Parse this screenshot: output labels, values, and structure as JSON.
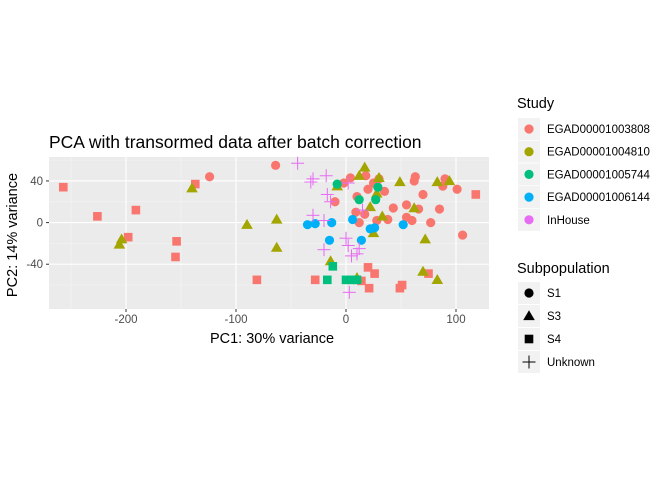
{
  "chart_data": {
    "type": "scatter",
    "title": "PCA with transormed data after batch correction",
    "xlabel": "PC1: 30% variance",
    "ylabel": "PC2: 14% variance",
    "xlim": [
      -270,
      130
    ],
    "ylim": [
      -83,
      63
    ],
    "xticks": [
      -200,
      -100,
      0,
      100
    ],
    "xtick_labels": [
      "-200",
      "-100",
      "0",
      "100"
    ],
    "yticks": [
      -40,
      0,
      40
    ],
    "ytick_labels": [
      "-40",
      "0",
      "40"
    ],
    "grid": true,
    "legend_position": "right",
    "legend_study": {
      "title": "Study",
      "entries": [
        {
          "key": "EGAD00001003808",
          "label": "EGAD00001003808",
          "color": "#F8766D"
        },
        {
          "key": "EGAD00001004810",
          "label": "EGAD00001004810",
          "color": "#A3A500"
        },
        {
          "key": "EGAD00001005744",
          "label": "EGAD00001005744",
          "color": "#00BF7D"
        },
        {
          "key": "EGAD00001006144",
          "label": "EGAD00001006144",
          "color": "#00B0F6"
        },
        {
          "key": "InHouse",
          "label": "InHouse",
          "color": "#E76BF3"
        }
      ]
    },
    "legend_subpopulation": {
      "title": "Subpopulation",
      "entries": [
        {
          "key": "S1",
          "label": "S1",
          "shape": "circle"
        },
        {
          "key": "S3",
          "label": "S3",
          "shape": "triangle"
        },
        {
          "key": "S4",
          "label": "S4",
          "shape": "square"
        },
        {
          "key": "Unknown",
          "label": "Unknown",
          "shape": "plus"
        }
      ]
    },
    "points": [
      {
        "x": -124,
        "y": 44,
        "study": "EGAD00001003808",
        "sub": "S1"
      },
      {
        "x": -64,
        "y": 55,
        "study": "EGAD00001003808",
        "sub": "S1"
      },
      {
        "x": 4,
        "y": 43,
        "study": "EGAD00001003808",
        "sub": "S1"
      },
      {
        "x": 18,
        "y": 45,
        "study": "EGAD00001003808",
        "sub": "S1"
      },
      {
        "x": 25,
        "y": 38,
        "study": "EGAD00001003808",
        "sub": "S1"
      },
      {
        "x": 30,
        "y": 42,
        "study": "EGAD00001003808",
        "sub": "S1"
      },
      {
        "x": 35,
        "y": 30,
        "study": "EGAD00001003808",
        "sub": "S1"
      },
      {
        "x": 20,
        "y": 32,
        "study": "EGAD00001003808",
        "sub": "S1"
      },
      {
        "x": 10,
        "y": 25,
        "study": "EGAD00001003808",
        "sub": "S1"
      },
      {
        "x": 63,
        "y": 44,
        "study": "EGAD00001003808",
        "sub": "S1"
      },
      {
        "x": 62,
        "y": 40,
        "study": "EGAD00001003808",
        "sub": "S1"
      },
      {
        "x": 70,
        "y": 27,
        "study": "EGAD00001003808",
        "sub": "S1"
      },
      {
        "x": 90,
        "y": 42,
        "study": "EGAD00001003808",
        "sub": "S1"
      },
      {
        "x": 88,
        "y": 35,
        "study": "EGAD00001003808",
        "sub": "S1"
      },
      {
        "x": 101,
        "y": 32,
        "study": "EGAD00001003808",
        "sub": "S1"
      },
      {
        "x": 55,
        "y": 17,
        "study": "EGAD00001003808",
        "sub": "S1"
      },
      {
        "x": 43,
        "y": 14,
        "study": "EGAD00001003808",
        "sub": "S1"
      },
      {
        "x": 38,
        "y": 3,
        "study": "EGAD00001003808",
        "sub": "S1"
      },
      {
        "x": 28,
        "y": 2,
        "study": "EGAD00001003808",
        "sub": "S1"
      },
      {
        "x": 55,
        "y": 5,
        "study": "EGAD00001003808",
        "sub": "S1"
      },
      {
        "x": 60,
        "y": 2,
        "study": "EGAD00001003808",
        "sub": "S1"
      },
      {
        "x": 66,
        "y": 13,
        "study": "EGAD00001003808",
        "sub": "S1"
      },
      {
        "x": 77,
        "y": 0,
        "study": "EGAD00001003808",
        "sub": "S1"
      },
      {
        "x": 85,
        "y": 13,
        "study": "EGAD00001003808",
        "sub": "S1"
      },
      {
        "x": 106,
        "y": -12,
        "study": "EGAD00001003808",
        "sub": "S1"
      },
      {
        "x": 9,
        "y": 10,
        "study": "EGAD00001003808",
        "sub": "S1"
      },
      {
        "x": 17,
        "y": 8,
        "study": "EGAD00001003808",
        "sub": "S1"
      },
      {
        "x": -10,
        "y": 20,
        "study": "EGAD00001003808",
        "sub": "S1"
      },
      {
        "x": -2,
        "y": 38,
        "study": "EGAD00001003808",
        "sub": "S1"
      },
      {
        "x": 12,
        "y": 0,
        "study": "EGAD00001003808",
        "sub": "S1"
      },
      {
        "x": -257,
        "y": 34,
        "study": "EGAD00001003808",
        "sub": "S4"
      },
      {
        "x": -226,
        "y": 6,
        "study": "EGAD00001003808",
        "sub": "S4"
      },
      {
        "x": -191,
        "y": 12,
        "study": "EGAD00001003808",
        "sub": "S4"
      },
      {
        "x": -198,
        "y": -14,
        "study": "EGAD00001003808",
        "sub": "S4"
      },
      {
        "x": -154,
        "y": -18,
        "study": "EGAD00001003808",
        "sub": "S4"
      },
      {
        "x": -155,
        "y": -33,
        "study": "EGAD00001003808",
        "sub": "S4"
      },
      {
        "x": -137,
        "y": 37,
        "study": "EGAD00001003808",
        "sub": "S4"
      },
      {
        "x": -81,
        "y": -55,
        "study": "EGAD00001003808",
        "sub": "S4"
      },
      {
        "x": -28,
        "y": -55,
        "study": "EGAD00001003808",
        "sub": "S4"
      },
      {
        "x": 20,
        "y": -43,
        "study": "EGAD00001003808",
        "sub": "S4"
      },
      {
        "x": 26,
        "y": -49,
        "study": "EGAD00001003808",
        "sub": "S4"
      },
      {
        "x": 14,
        "y": -56,
        "study": "EGAD00001003808",
        "sub": "S4"
      },
      {
        "x": 21,
        "y": -63,
        "study": "EGAD00001003808",
        "sub": "S4"
      },
      {
        "x": 49,
        "y": -63,
        "study": "EGAD00001003808",
        "sub": "S4"
      },
      {
        "x": 51,
        "y": -60,
        "study": "EGAD00001003808",
        "sub": "S4"
      },
      {
        "x": 75,
        "y": -49,
        "study": "EGAD00001003808",
        "sub": "S4"
      },
      {
        "x": 118,
        "y": 27,
        "study": "EGAD00001003808",
        "sub": "S4"
      },
      {
        "x": -204,
        "y": -16,
        "study": "EGAD00001004810",
        "sub": "S3"
      },
      {
        "x": -206,
        "y": -21,
        "study": "EGAD00001004810",
        "sub": "S3"
      },
      {
        "x": -140,
        "y": 33,
        "study": "EGAD00001004810",
        "sub": "S3"
      },
      {
        "x": -90,
        "y": -2,
        "study": "EGAD00001004810",
        "sub": "S3"
      },
      {
        "x": -63,
        "y": 3,
        "study": "EGAD00001004810",
        "sub": "S3"
      },
      {
        "x": -63,
        "y": -24,
        "study": "EGAD00001004810",
        "sub": "S3"
      },
      {
        "x": 12,
        "y": 45,
        "study": "EGAD00001004810",
        "sub": "S3"
      },
      {
        "x": 17,
        "y": 53,
        "study": "EGAD00001004810",
        "sub": "S3"
      },
      {
        "x": 28,
        "y": 28,
        "study": "EGAD00001004810",
        "sub": "S3"
      },
      {
        "x": 30,
        "y": 43,
        "study": "EGAD00001004810",
        "sub": "S3"
      },
      {
        "x": 22,
        "y": 15,
        "study": "EGAD00001004810",
        "sub": "S3"
      },
      {
        "x": 49,
        "y": 39,
        "study": "EGAD00001004810",
        "sub": "S3"
      },
      {
        "x": 62,
        "y": 14,
        "study": "EGAD00001004810",
        "sub": "S3"
      },
      {
        "x": 83,
        "y": 39,
        "study": "EGAD00001004810",
        "sub": "S3"
      },
      {
        "x": 94,
        "y": 40,
        "study": "EGAD00001004810",
        "sub": "S3"
      },
      {
        "x": 72,
        "y": -16,
        "study": "EGAD00001004810",
        "sub": "S3"
      },
      {
        "x": 70,
        "y": -47,
        "study": "EGAD00001004810",
        "sub": "S3"
      },
      {
        "x": 83,
        "y": -55,
        "study": "EGAD00001004810",
        "sub": "S3"
      },
      {
        "x": 10,
        "y": -53,
        "study": "EGAD00001004810",
        "sub": "S3"
      },
      {
        "x": -14,
        "y": -37,
        "study": "EGAD00001004810",
        "sub": "S3"
      },
      {
        "x": -8,
        "y": 35,
        "study": "EGAD00001004810",
        "sub": "S3"
      },
      {
        "x": 33,
        "y": 6,
        "study": "EGAD00001004810",
        "sub": "S3"
      },
      {
        "x": 25,
        "y": -10,
        "study": "EGAD00001004810",
        "sub": "S3"
      },
      {
        "x": -8,
        "y": 37,
        "study": "EGAD00001005744",
        "sub": "S1"
      },
      {
        "x": 12,
        "y": 22,
        "study": "EGAD00001005744",
        "sub": "S1"
      },
      {
        "x": 27,
        "y": 22,
        "study": "EGAD00001005744",
        "sub": "S1"
      },
      {
        "x": 29,
        "y": 34,
        "study": "EGAD00001005744",
        "sub": "S1"
      },
      {
        "x": -12,
        "y": -42,
        "study": "EGAD00001005744",
        "sub": "S4"
      },
      {
        "x": -17,
        "y": -55,
        "study": "EGAD00001005744",
        "sub": "S4"
      },
      {
        "x": 0,
        "y": -55,
        "study": "EGAD00001005744",
        "sub": "S4"
      },
      {
        "x": 5,
        "y": -55,
        "study": "EGAD00001005744",
        "sub": "S4"
      },
      {
        "x": 10,
        "y": -55,
        "study": "EGAD00001005744",
        "sub": "S4"
      },
      {
        "x": -35,
        "y": -2,
        "study": "EGAD00001006144",
        "sub": "S1"
      },
      {
        "x": -28,
        "y": -1,
        "study": "EGAD00001006144",
        "sub": "S1"
      },
      {
        "x": -13,
        "y": 0,
        "study": "EGAD00001006144",
        "sub": "S1"
      },
      {
        "x": -15,
        "y": -17,
        "study": "EGAD00001006144",
        "sub": "S1"
      },
      {
        "x": 6,
        "y": 3,
        "study": "EGAD00001006144",
        "sub": "S1"
      },
      {
        "x": 14,
        "y": -17,
        "study": "EGAD00001006144",
        "sub": "S1"
      },
      {
        "x": 22,
        "y": -6,
        "study": "EGAD00001006144",
        "sub": "S1"
      },
      {
        "x": 26,
        "y": -5,
        "study": "EGAD00001006144",
        "sub": "S1"
      },
      {
        "x": 52,
        "y": -2,
        "study": "EGAD00001006144",
        "sub": "S1"
      },
      {
        "x": -44,
        "y": 57,
        "study": "InHouse",
        "sub": "Unknown"
      },
      {
        "x": -32,
        "y": 39,
        "study": "InHouse",
        "sub": "Unknown"
      },
      {
        "x": -30,
        "y": 42,
        "study": "InHouse",
        "sub": "Unknown"
      },
      {
        "x": -18,
        "y": 45,
        "study": "InHouse",
        "sub": "Unknown"
      },
      {
        "x": -17,
        "y": 27,
        "study": "InHouse",
        "sub": "Unknown"
      },
      {
        "x": -14,
        "y": 20,
        "study": "InHouse",
        "sub": "Unknown"
      },
      {
        "x": 2,
        "y": 38,
        "study": "InHouse",
        "sub": "Unknown"
      },
      {
        "x": -30,
        "y": 7,
        "study": "InHouse",
        "sub": "Unknown"
      },
      {
        "x": -20,
        "y": 2,
        "study": "InHouse",
        "sub": "Unknown"
      },
      {
        "x": 0,
        "y": -15,
        "study": "InHouse",
        "sub": "Unknown"
      },
      {
        "x": 2,
        "y": -22,
        "study": "InHouse",
        "sub": "Unknown"
      },
      {
        "x": 12,
        "y": -25,
        "study": "InHouse",
        "sub": "Unknown"
      },
      {
        "x": -20,
        "y": -26,
        "study": "InHouse",
        "sub": "Unknown"
      },
      {
        "x": 5,
        "y": -32,
        "study": "InHouse",
        "sub": "Unknown"
      },
      {
        "x": 3,
        "y": -67,
        "study": "InHouse",
        "sub": "Unknown"
      },
      {
        "x": 15,
        "y": 12,
        "study": "InHouse",
        "sub": "Unknown"
      },
      {
        "x": 10,
        "y": -30,
        "study": "InHouse",
        "sub": "Unknown"
      }
    ]
  }
}
